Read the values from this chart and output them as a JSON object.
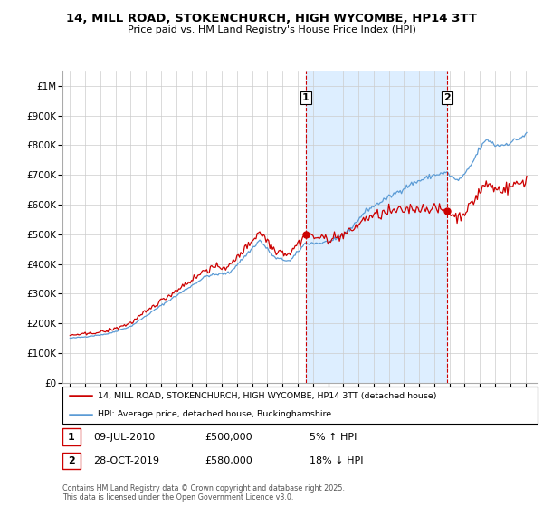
{
  "title": "14, MILL ROAD, STOKENCHURCH, HIGH WYCOMBE, HP14 3TT",
  "subtitle": "Price paid vs. HM Land Registry's House Price Index (HPI)",
  "legend_line1": "14, MILL ROAD, STOKENCHURCH, HIGH WYCOMBE, HP14 3TT (detached house)",
  "legend_line2": "HPI: Average price, detached house, Buckinghamshire",
  "annotation1_date": "09-JUL-2010",
  "annotation1_price": "£500,000",
  "annotation1_change": "5% ↑ HPI",
  "annotation2_date": "28-OCT-2019",
  "annotation2_price": "£580,000",
  "annotation2_change": "18% ↓ HPI",
  "footer": "Contains HM Land Registry data © Crown copyright and database right 2025.\nThis data is licensed under the Open Government Licence v3.0.",
  "red_color": "#cc0000",
  "blue_color": "#5b9bd5",
  "shade_color": "#ddeeff",
  "dashed_color": "#cc0000",
  "ylim_min": 0,
  "ylim_max": 1050000,
  "yticks": [
    0,
    100000,
    200000,
    300000,
    400000,
    500000,
    600000,
    700000,
    800000,
    900000,
    1000000
  ],
  "ytick_labels": [
    "£0",
    "£100K",
    "£200K",
    "£300K",
    "£400K",
    "£500K",
    "£600K",
    "£700K",
    "£800K",
    "£900K",
    "£1M"
  ],
  "sale1_year": 2010.52,
  "sale1_price": 500000,
  "sale2_year": 2019.83,
  "sale2_price": 580000,
  "xlim_min": 1994.5,
  "xlim_max": 2025.8
}
